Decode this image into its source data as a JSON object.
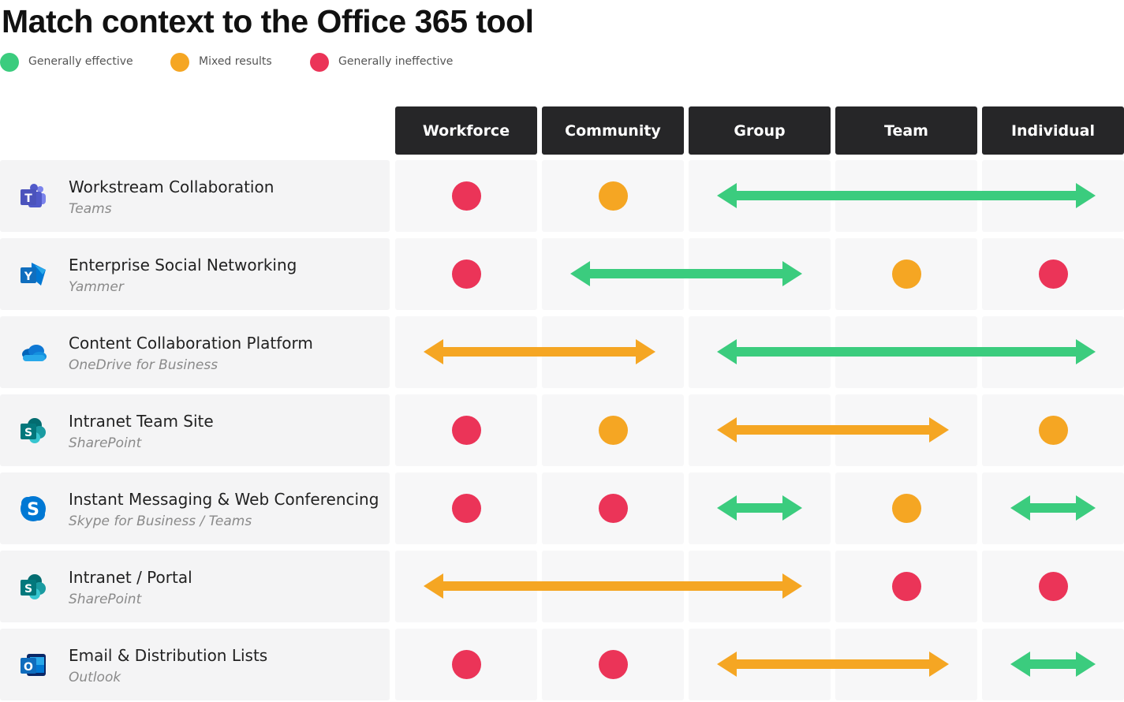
{
  "title": "Match context to the Office 365 tool",
  "colors": {
    "effective": "#3bcc7e",
    "mixed": "#f5a623",
    "ineffective": "#eb3458"
  },
  "legend": [
    {
      "key": "effective",
      "label": "Generally effective"
    },
    {
      "key": "mixed",
      "label": "Mixed results"
    },
    {
      "key": "ineffective",
      "label": "Generally ineffective"
    }
  ],
  "columns": [
    "Workforce",
    "Community",
    "Group",
    "Team",
    "Individual"
  ],
  "rows": [
    {
      "name": "Workstream Collaboration",
      "tool": "Teams",
      "icon": "teams-icon",
      "marks": [
        {
          "type": "dot",
          "col": 0,
          "rating": "ineffective"
        },
        {
          "type": "dot",
          "col": 1,
          "rating": "mixed"
        },
        {
          "type": "arrow",
          "from": 2,
          "to": 4,
          "rating": "effective"
        }
      ]
    },
    {
      "name": "Enterprise Social Networking",
      "tool": "Yammer",
      "icon": "yammer-icon",
      "marks": [
        {
          "type": "dot",
          "col": 0,
          "rating": "ineffective"
        },
        {
          "type": "arrow",
          "from": 1,
          "to": 2,
          "rating": "effective"
        },
        {
          "type": "dot",
          "col": 3,
          "rating": "mixed"
        },
        {
          "type": "dot",
          "col": 4,
          "rating": "ineffective"
        }
      ]
    },
    {
      "name": "Content Collaboration Platform",
      "tool": "OneDrive for Business",
      "icon": "onedrive-icon",
      "marks": [
        {
          "type": "arrow",
          "from": 0,
          "to": 1,
          "rating": "mixed"
        },
        {
          "type": "arrow",
          "from": 2,
          "to": 4,
          "rating": "effective"
        }
      ]
    },
    {
      "name": "Intranet Team Site",
      "tool": "SharePoint",
      "icon": "sharepoint-icon",
      "marks": [
        {
          "type": "dot",
          "col": 0,
          "rating": "ineffective"
        },
        {
          "type": "dot",
          "col": 1,
          "rating": "mixed"
        },
        {
          "type": "arrow",
          "from": 2,
          "to": 3,
          "rating": "mixed"
        },
        {
          "type": "dot",
          "col": 4,
          "rating": "mixed"
        }
      ]
    },
    {
      "name": "Instant Messaging & Web Conferencing",
      "tool": "Skype for Business / Teams",
      "icon": "skype-icon",
      "marks": [
        {
          "type": "dot",
          "col": 0,
          "rating": "ineffective"
        },
        {
          "type": "dot",
          "col": 1,
          "rating": "ineffective"
        },
        {
          "type": "arrow",
          "from": 2,
          "to": 2,
          "rating": "effective"
        },
        {
          "type": "dot",
          "col": 3,
          "rating": "mixed"
        },
        {
          "type": "arrow",
          "from": 4,
          "to": 4,
          "rating": "effective"
        }
      ]
    },
    {
      "name": "Intranet / Portal",
      "tool": "SharePoint",
      "icon": "sharepoint-icon",
      "marks": [
        {
          "type": "arrow",
          "from": 0,
          "to": 2,
          "rating": "mixed"
        },
        {
          "type": "dot",
          "col": 3,
          "rating": "ineffective"
        },
        {
          "type": "dot",
          "col": 4,
          "rating": "ineffective"
        }
      ]
    },
    {
      "name": "Email & Distribution Lists",
      "tool": "Outlook",
      "icon": "outlook-icon",
      "marks": [
        {
          "type": "dot",
          "col": 0,
          "rating": "ineffective"
        },
        {
          "type": "dot",
          "col": 1,
          "rating": "ineffective"
        },
        {
          "type": "arrow",
          "from": 2,
          "to": 3,
          "rating": "mixed"
        },
        {
          "type": "arrow",
          "from": 4,
          "to": 4,
          "rating": "effective"
        }
      ]
    }
  ]
}
